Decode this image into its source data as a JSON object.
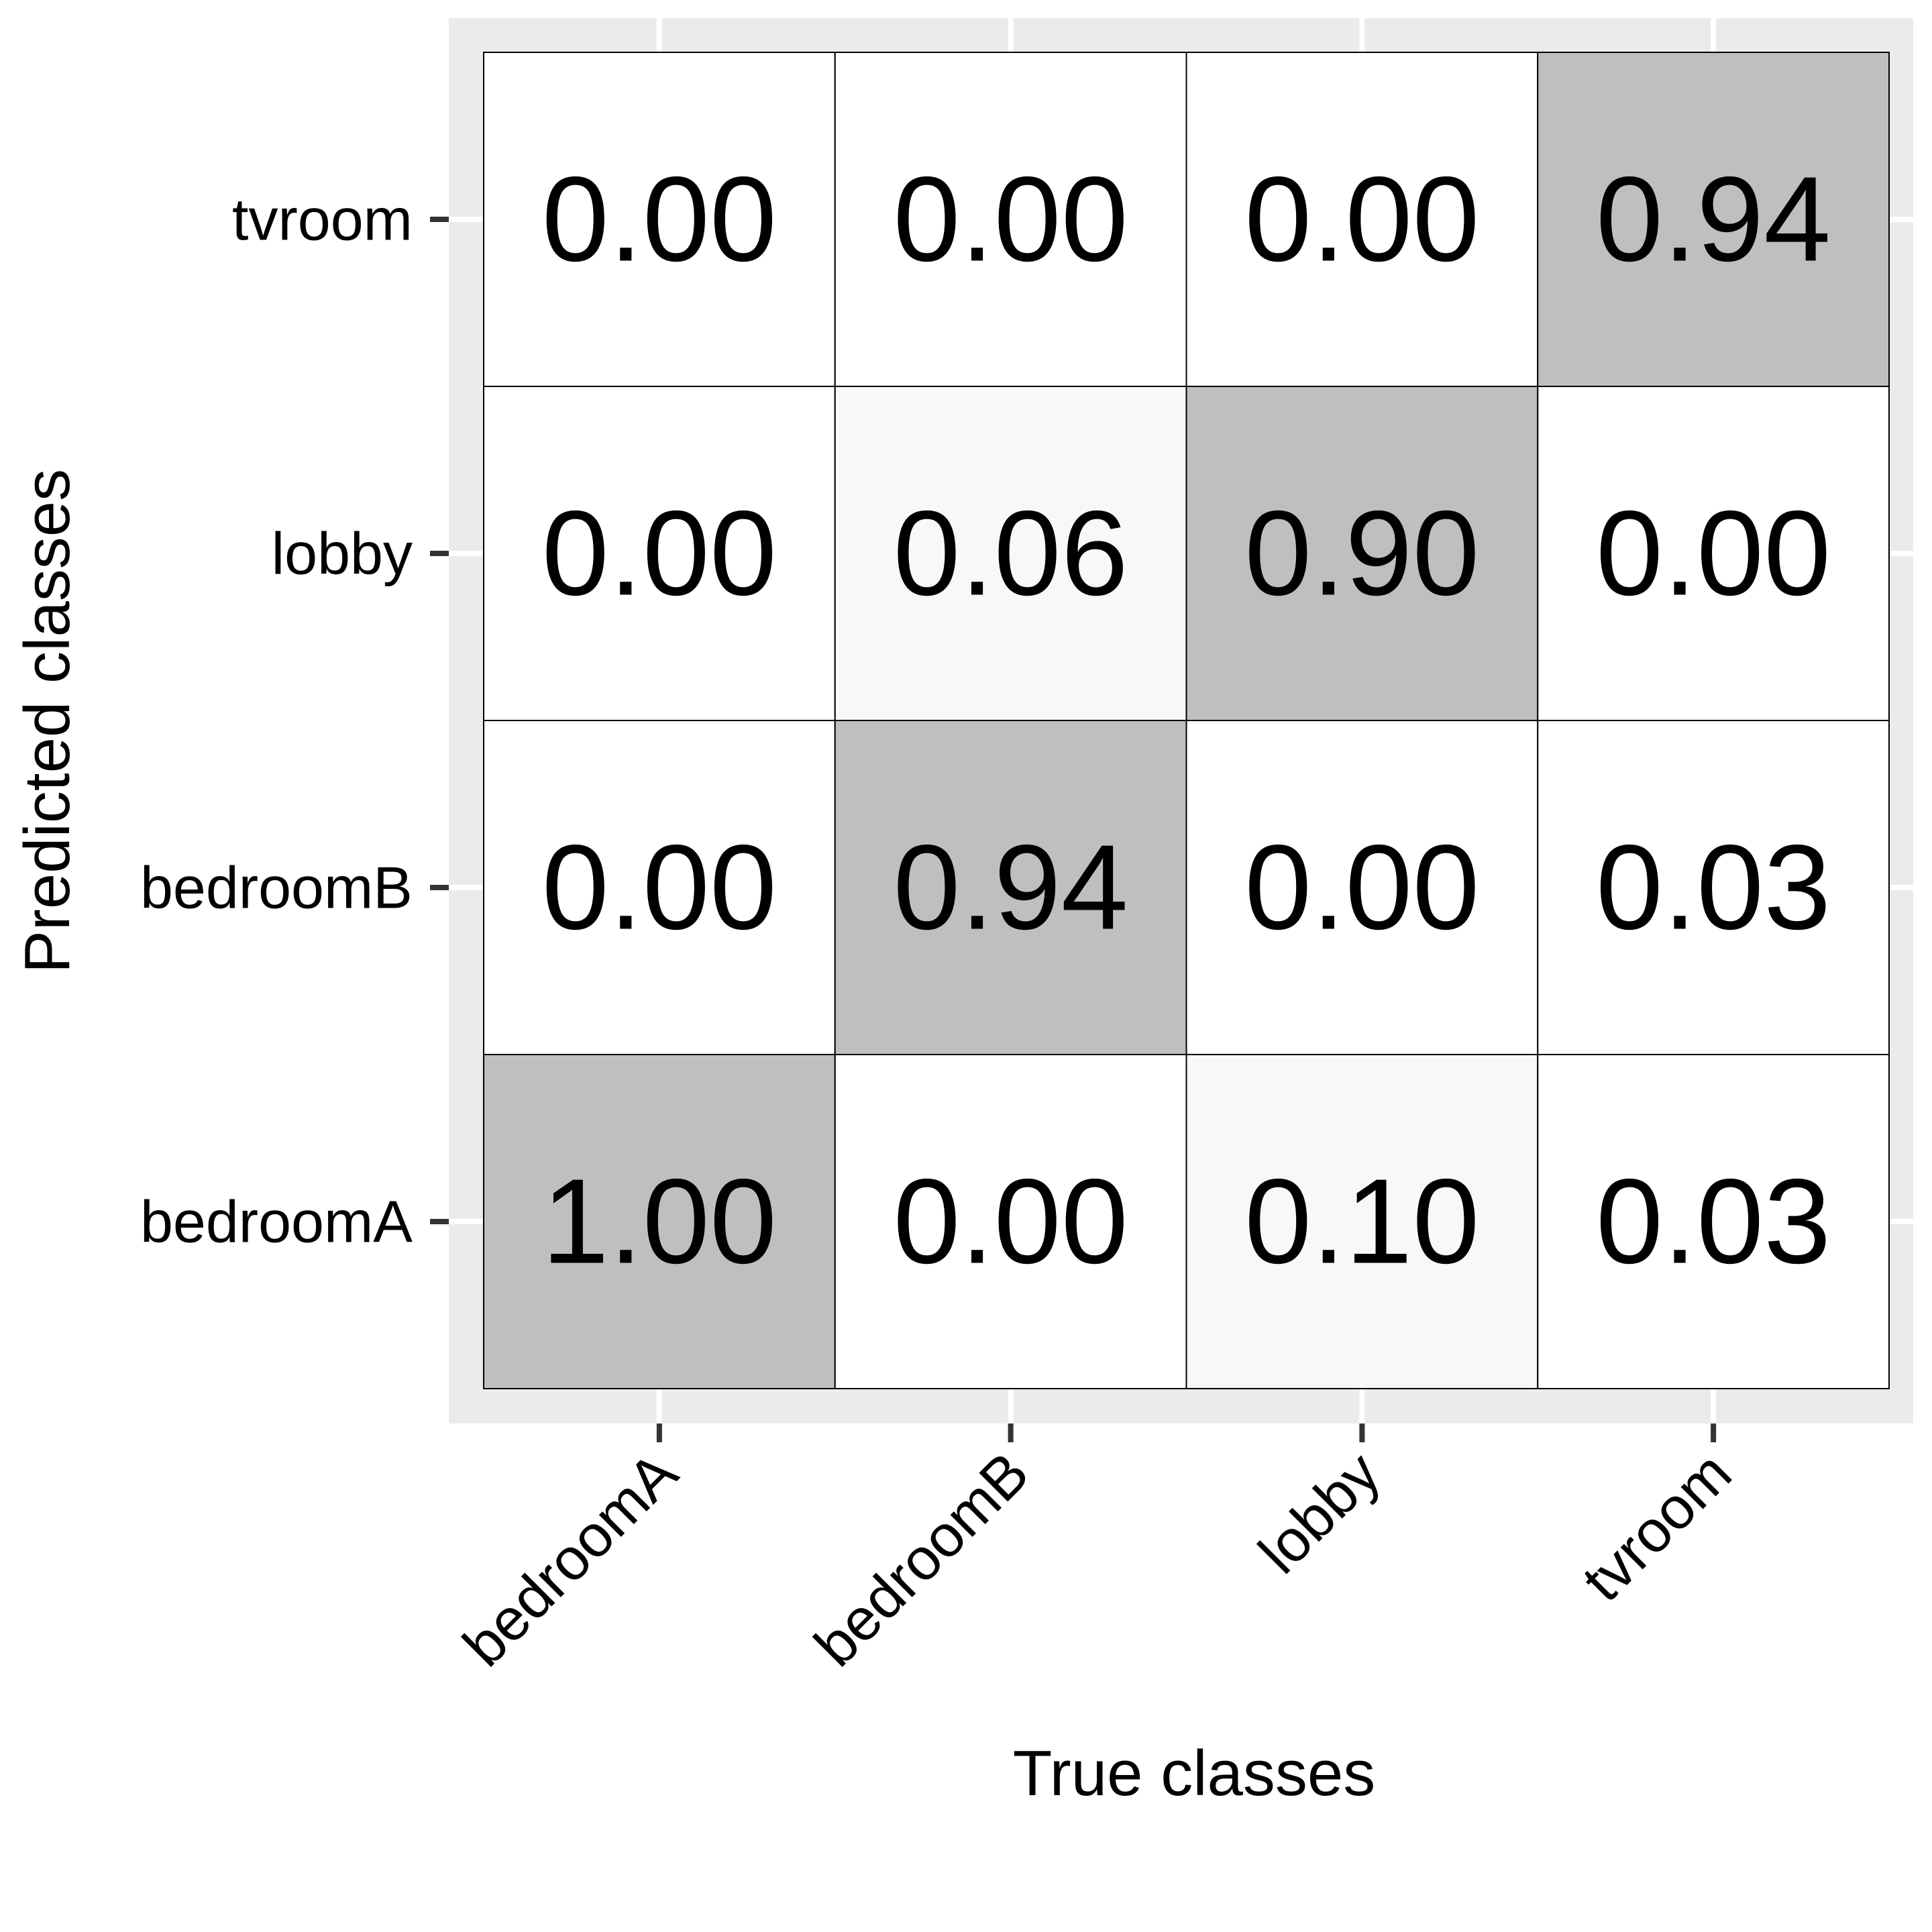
{
  "chart_data": {
    "type": "heatmap",
    "xlabel": "True classes",
    "ylabel": "Predicted classes",
    "x_categories": [
      "bedroomA",
      "bedroomB",
      "lobby",
      "tvroom"
    ],
    "y_categories": [
      "bedroomA",
      "bedroomB",
      "lobby",
      "tvroom"
    ],
    "cells": [
      {
        "x": "bedroomA",
        "y": "tvroom",
        "value": 0.0,
        "label": "0.00"
      },
      {
        "x": "bedroomB",
        "y": "tvroom",
        "value": 0.0,
        "label": "0.00"
      },
      {
        "x": "lobby",
        "y": "tvroom",
        "value": 0.0,
        "label": "0.00"
      },
      {
        "x": "tvroom",
        "y": "tvroom",
        "value": 0.94,
        "label": "0.94"
      },
      {
        "x": "bedroomA",
        "y": "lobby",
        "value": 0.0,
        "label": "0.00"
      },
      {
        "x": "bedroomB",
        "y": "lobby",
        "value": 0.06,
        "label": "0.06"
      },
      {
        "x": "lobby",
        "y": "lobby",
        "value": 0.9,
        "label": "0.90"
      },
      {
        "x": "tvroom",
        "y": "lobby",
        "value": 0.0,
        "label": "0.00"
      },
      {
        "x": "bedroomA",
        "y": "bedroomB",
        "value": 0.0,
        "label": "0.00"
      },
      {
        "x": "bedroomB",
        "y": "bedroomB",
        "value": 0.94,
        "label": "0.94"
      },
      {
        "x": "lobby",
        "y": "bedroomB",
        "value": 0.0,
        "label": "0.00"
      },
      {
        "x": "tvroom",
        "y": "bedroomB",
        "value": 0.03,
        "label": "0.03"
      },
      {
        "x": "bedroomA",
        "y": "bedroomA",
        "value": 1.0,
        "label": "1.00"
      },
      {
        "x": "bedroomB",
        "y": "bedroomA",
        "value": 0.0,
        "label": "0.00"
      },
      {
        "x": "lobby",
        "y": "bedroomA",
        "value": 0.1,
        "label": "0.10"
      },
      {
        "x": "tvroom",
        "y": "bedroomA",
        "value": 0.03,
        "label": "0.03"
      }
    ],
    "colors": {
      "diagonal_fill": "#bfbfbf",
      "low_nonzero_fill": "#f8f8f8",
      "zero_fill": "#ffffff",
      "panel_background": "#ebebeb",
      "gridline": "#ffffff",
      "cell_border": "#000000",
      "text": "#000000",
      "tick": "#333333"
    },
    "grid": true,
    "legend": "none"
  }
}
